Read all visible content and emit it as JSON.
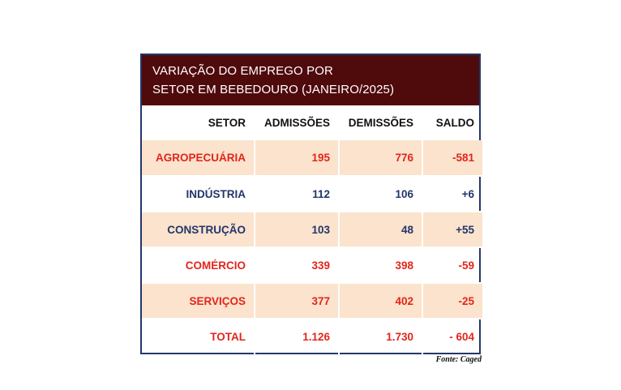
{
  "title": {
    "line1": "VARIAÇÃO DO EMPREGO POR",
    "line2": "SETOR EM BEBEDOURO (JANEIRO/2025)"
  },
  "columns": [
    "SETOR",
    "ADMISSÕES",
    "DEMISSÕES",
    "SALDO"
  ],
  "rows": [
    {
      "setor": "AGROPECUÁRIA",
      "admissoes": "195",
      "demissoes": "776",
      "saldo": "-581"
    },
    {
      "setor": "INDÚSTRIA",
      "admissoes": "112",
      "demissoes": "106",
      "saldo": "+6"
    },
    {
      "setor": "CONSTRUÇÃO",
      "admissoes": "103",
      "demissoes": "48",
      "saldo": "+55"
    },
    {
      "setor": "COMÉRCIO",
      "admissoes": "339",
      "demissoes": "398",
      "saldo": "-59"
    },
    {
      "setor": "SERVIÇOS",
      "admissoes": "377",
      "demissoes": "402",
      "saldo": "-25"
    }
  ],
  "total": {
    "label": "TOTAL",
    "admissoes": "1.126",
    "demissoes": "1.730",
    "saldo": "- 604"
  },
  "source": "Fonte: Caged",
  "colors": {
    "header_bg": "#4f0a0c",
    "border": "#23376b",
    "stripe": "#fbe3cd",
    "red": "#e1261c",
    "blue": "#22366a"
  }
}
